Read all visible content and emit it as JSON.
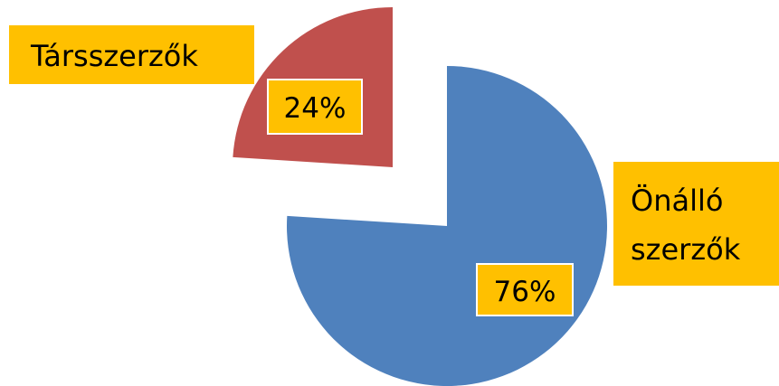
{
  "chart_data": {
    "type": "pie",
    "title": "",
    "slices": [
      {
        "category": "Társszerzők",
        "value": 24,
        "value_label": "24%",
        "color": "#C0504D",
        "exploded": true
      },
      {
        "category_lines": [
          "Önálló",
          "szerzők"
        ],
        "value": 76,
        "value_label": "76%",
        "color": "#4F81BD",
        "exploded": false
      }
    ],
    "legend": "none",
    "label_background": "#FFC000"
  }
}
